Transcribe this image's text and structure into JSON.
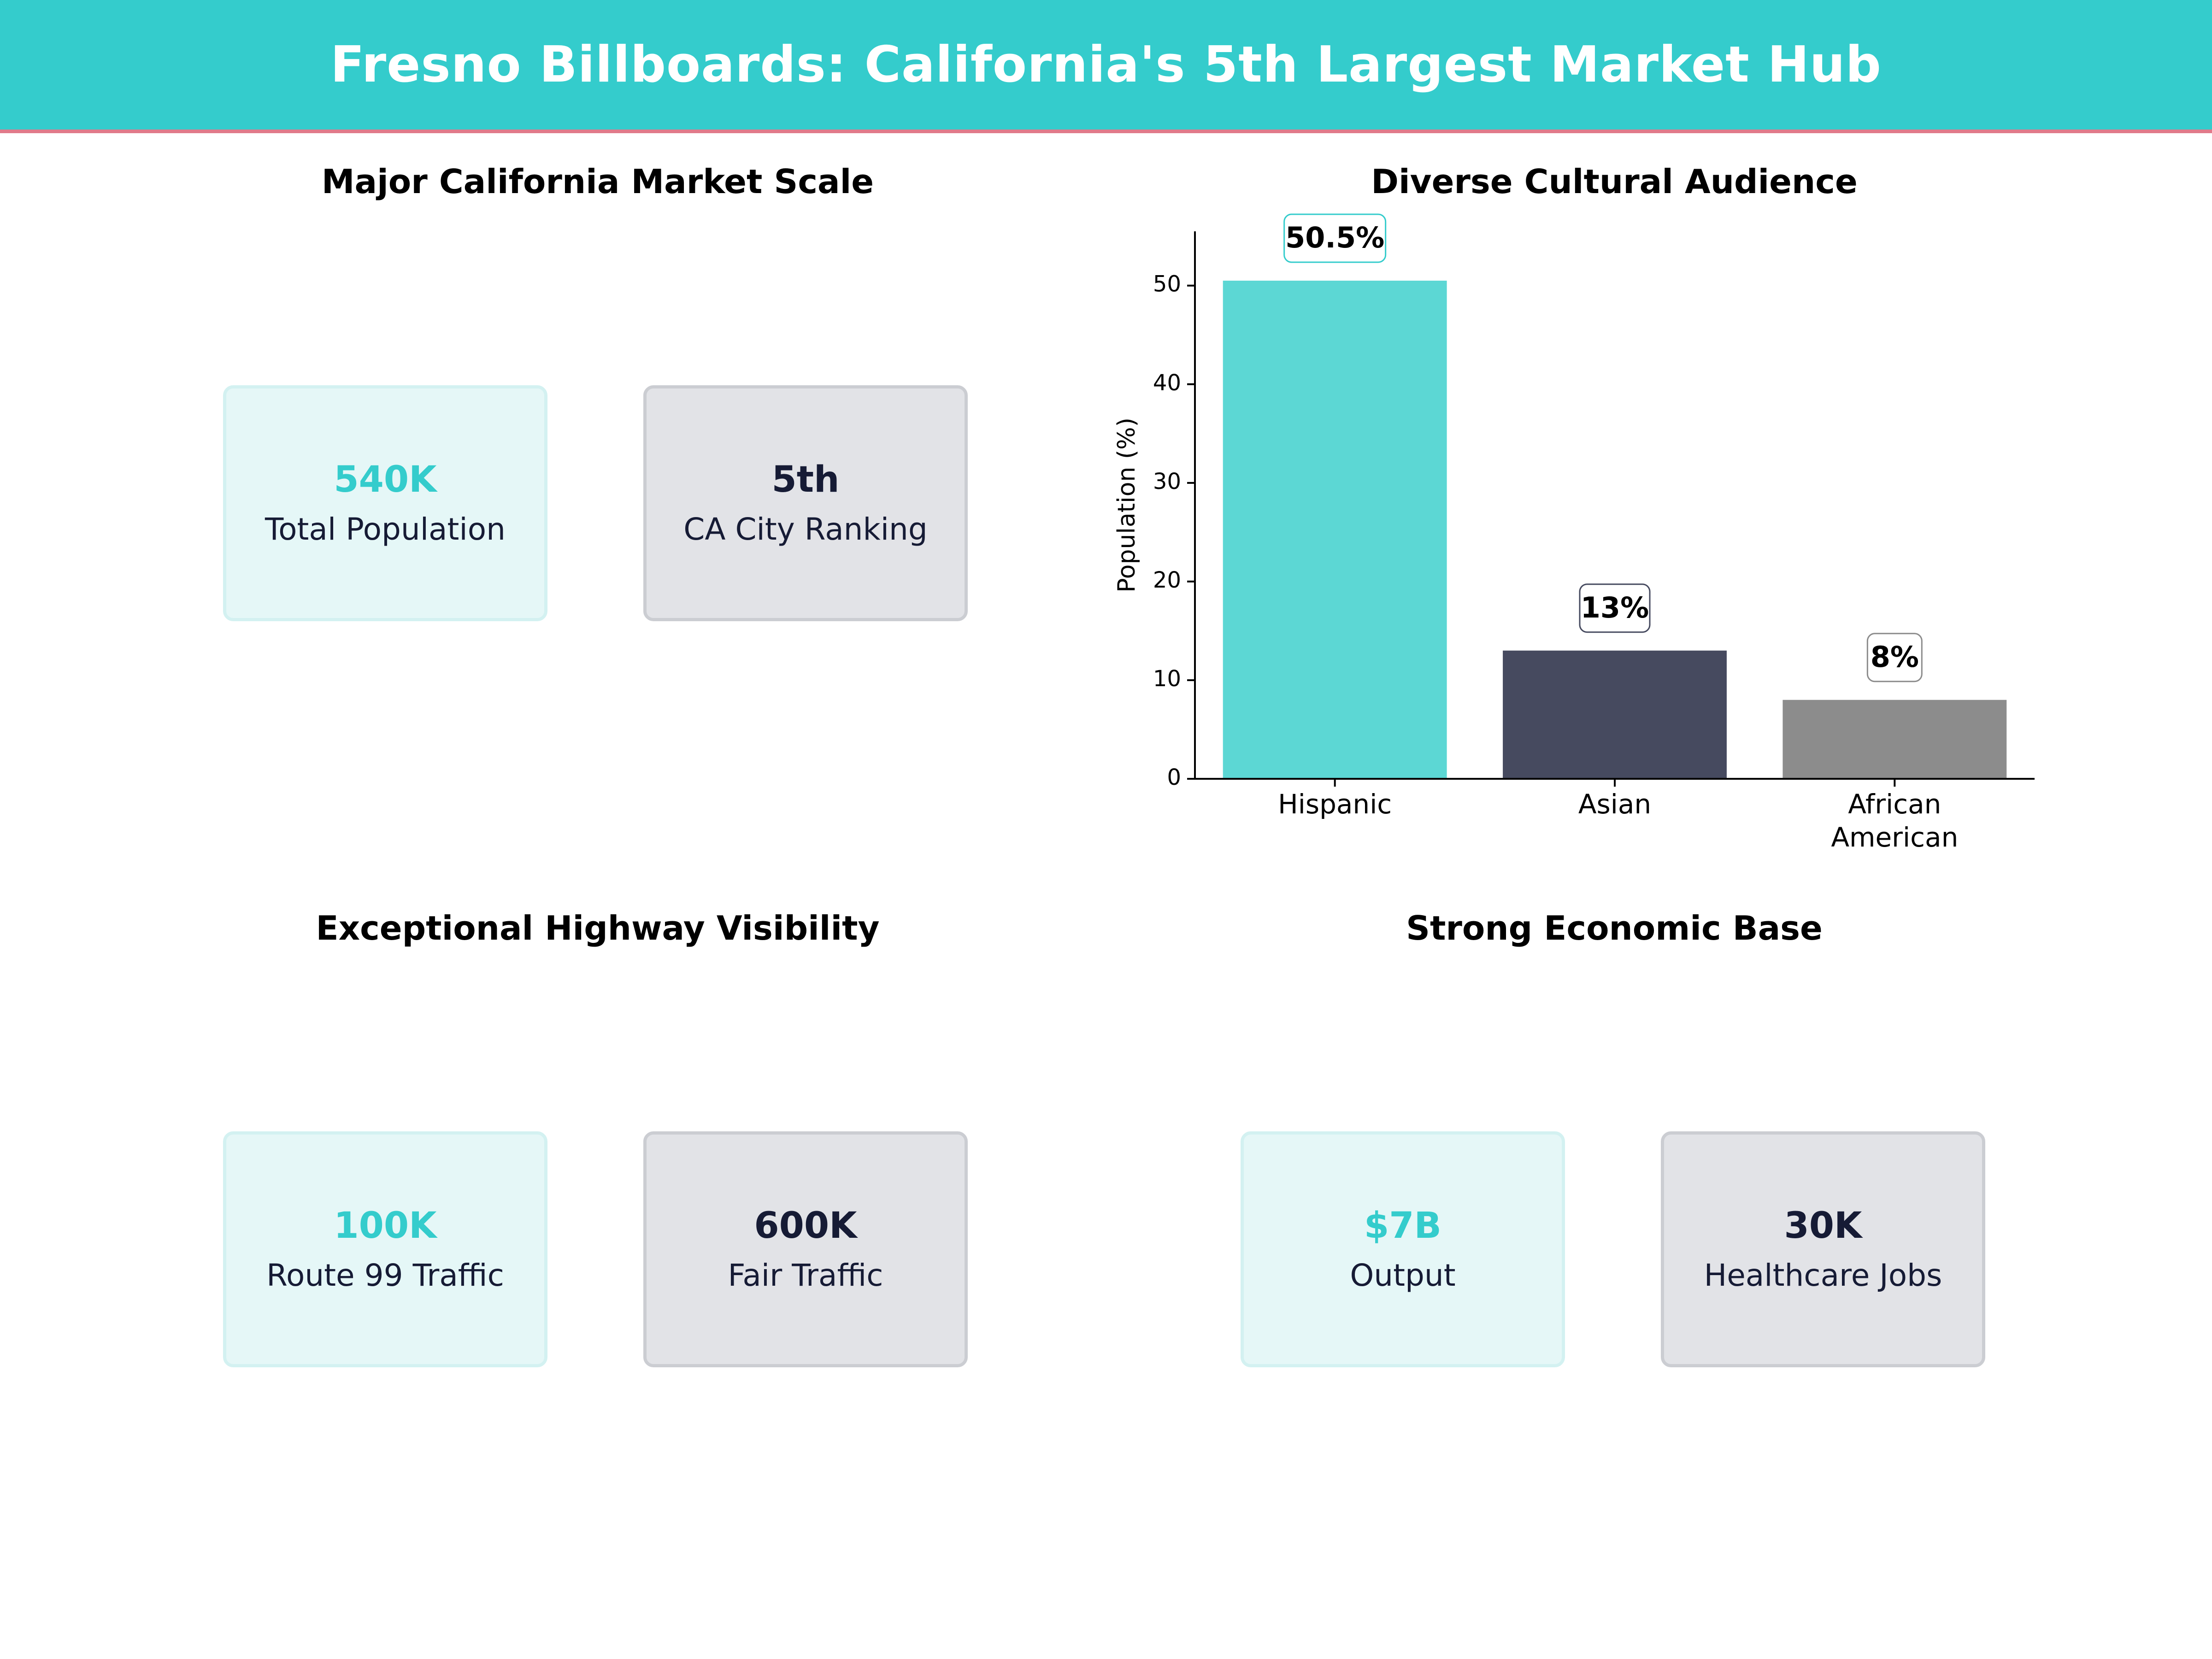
{
  "header": {
    "title": "Fresno Billboards: California's 5th Largest Market Hub"
  },
  "panels": {
    "market": {
      "title": "Major California Market Scale",
      "cards": [
        {
          "value": "540K",
          "label": "Total Population"
        },
        {
          "value": "5th",
          "label": "CA City Ranking"
        }
      ]
    },
    "audience": {
      "title": "Diverse Cultural Audience"
    },
    "highway": {
      "title": "Exceptional Highway Visibility",
      "cards": [
        {
          "value": "100K",
          "label": "Route 99 Traffic"
        },
        {
          "value": "600K",
          "label": "Fair Traffic"
        }
      ]
    },
    "economy": {
      "title": "Strong Economic Base",
      "cards": [
        {
          "value": "$7B",
          "label": "Output"
        },
        {
          "value": "30K",
          "label": "Healthcare Jobs"
        }
      ]
    }
  },
  "chart_data": {
    "type": "bar",
    "title": "Diverse Cultural Audience",
    "categories": [
      "Hispanic",
      "Asian",
      "African\nAmerican"
    ],
    "values": [
      50.5,
      13,
      8
    ],
    "data_labels": [
      "50.5%",
      "13%",
      "8%"
    ],
    "colors": [
      "#5CD7D4",
      "#464A5F",
      "#8C8C8C"
    ],
    "label_border_colors": [
      "#34CCCC",
      "#464A5F",
      "#8C8C8C"
    ],
    "ylabel": "Population (%)",
    "ylim": [
      0,
      55.5
    ],
    "yticks": [
      0,
      10,
      20,
      30,
      40,
      50
    ],
    "grid": false
  },
  "colors": {
    "accent": "#34CCCC",
    "header_border": "#E07A8A",
    "dark": "#161B35"
  }
}
